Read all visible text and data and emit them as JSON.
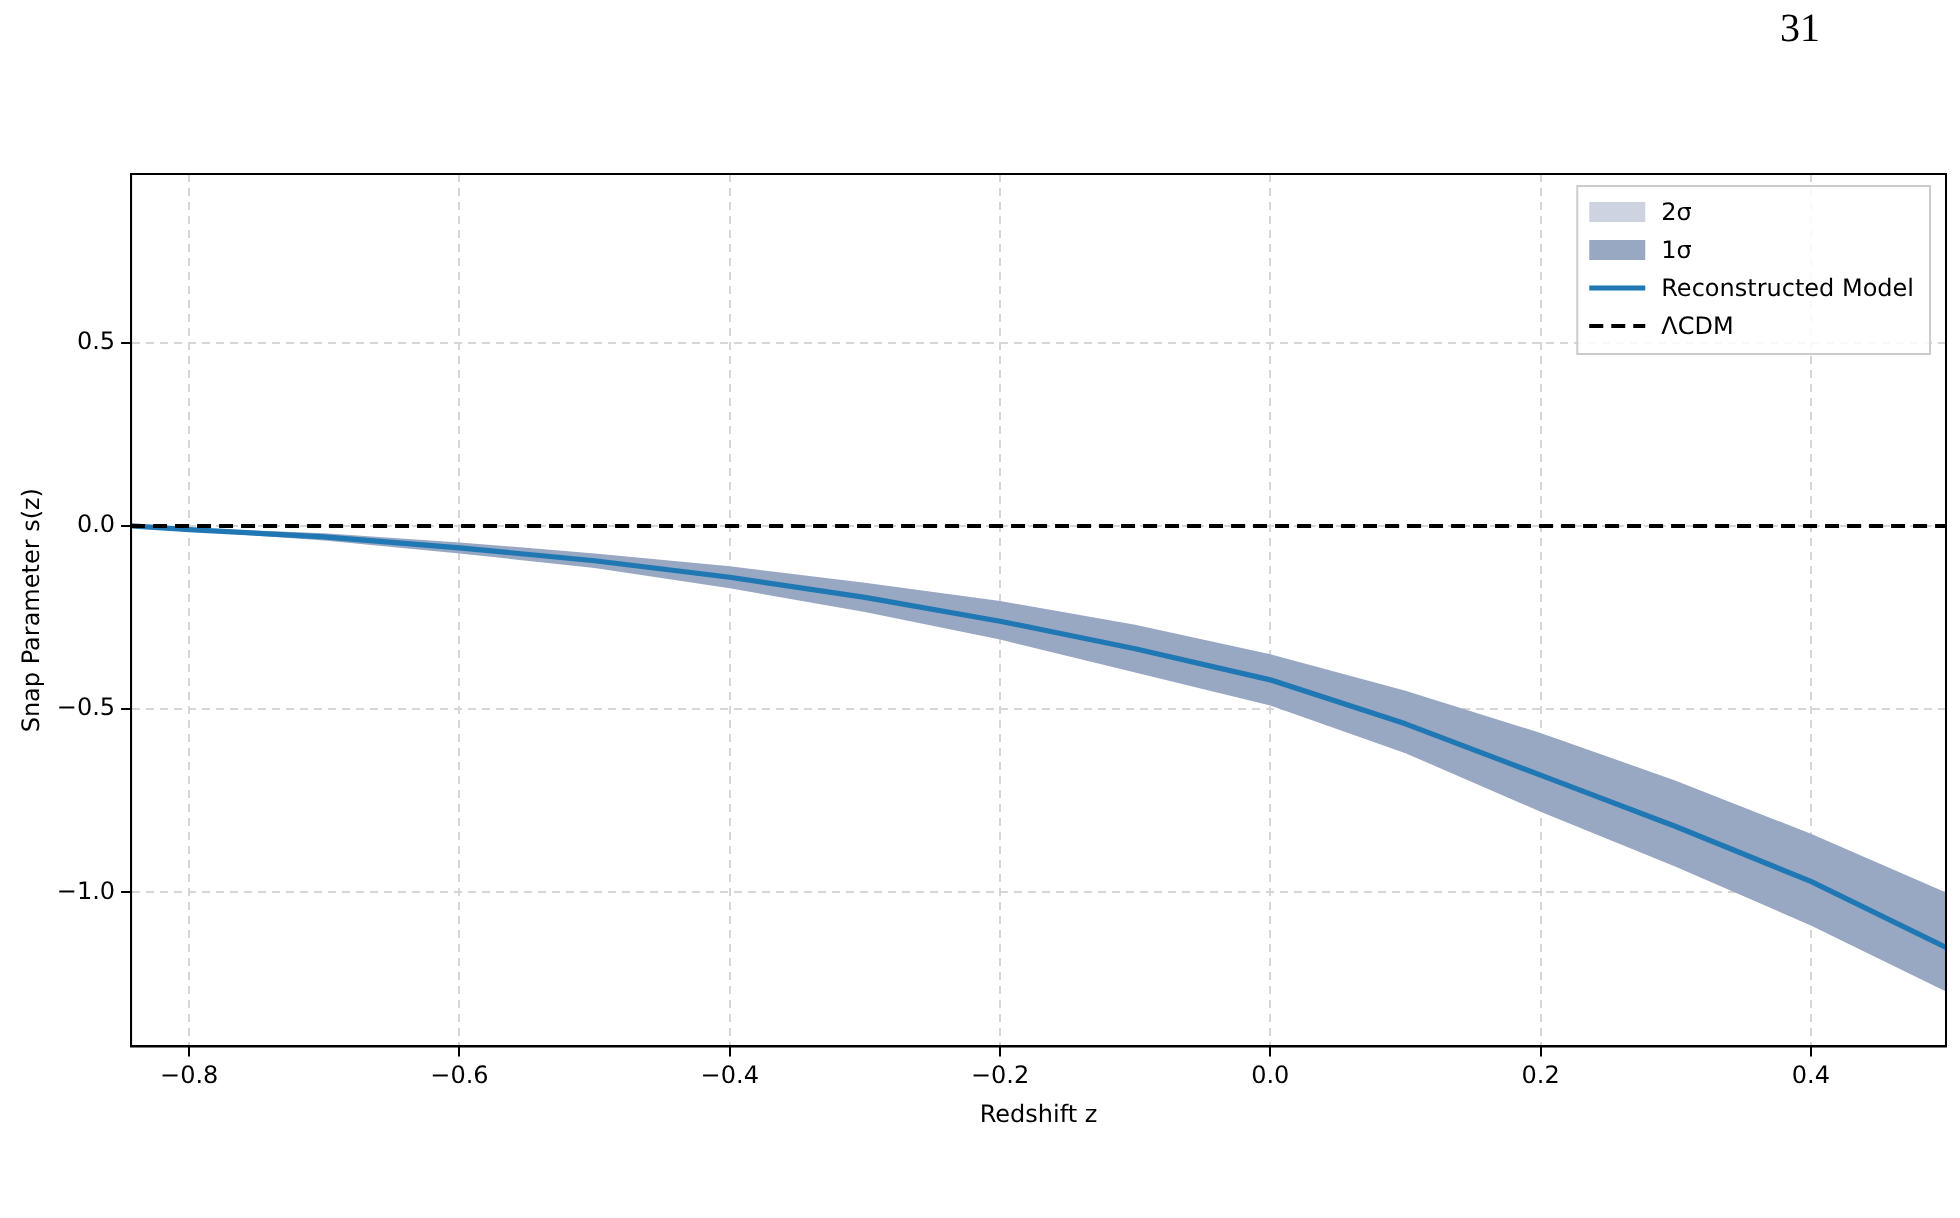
{
  "chart_data": {
    "type": "line",
    "xlabel": "Redshift z",
    "ylabel": "Snap Parameter s(z)",
    "annotations": [
      "31"
    ],
    "x": [
      -0.843,
      -0.8,
      -0.7,
      -0.6,
      -0.5,
      -0.4,
      -0.3,
      -0.2,
      -0.1,
      0,
      0.1,
      0.2,
      0.3,
      0.4,
      0.5
    ],
    "series": [
      {
        "name": "2σ",
        "type": "area",
        "color": "#cdd3e0",
        "values": [
          null,
          null,
          null,
          null,
          null,
          null,
          null,
          null,
          null,
          null,
          null,
          null,
          null,
          null,
          null
        ],
        "lower": [
          null,
          null,
          null,
          null,
          null,
          null,
          null,
          null,
          null,
          null,
          null,
          null,
          null,
          null,
          null
        ],
        "upper": [
          null,
          null,
          null,
          null,
          null,
          null,
          null,
          null,
          null,
          null,
          null,
          null,
          null,
          null,
          null
        ]
      },
      {
        "name": "1σ",
        "type": "area",
        "color": "#98a7c2",
        "values": [
          null,
          null,
          null,
          null,
          null,
          null,
          null,
          null,
          null,
          null,
          null,
          null,
          null,
          null,
          null
        ],
        "lower": [
          0,
          -0.014,
          -0.04,
          -0.075,
          -0.115,
          -0.17,
          -0.235,
          -0.31,
          -0.4,
          -0.49,
          -0.62,
          -0.78,
          -0.93,
          -1.09,
          -1.27
        ],
        "upper": [
          0,
          -0.006,
          -0.02,
          -0.045,
          -0.075,
          -0.11,
          -0.155,
          -0.205,
          -0.27,
          -0.35,
          -0.45,
          -0.565,
          -0.695,
          -0.84,
          -1.0
        ]
      },
      {
        "name": "Reconstructed Model",
        "color": "#1f77b4",
        "values": [
          0,
          -0.01,
          -0.03,
          -0.06,
          -0.095,
          -0.14,
          -0.195,
          -0.26,
          -0.335,
          -0.42,
          -0.54,
          -0.68,
          -0.82,
          -0.97,
          -1.15
        ]
      },
      {
        "name": "ΛCDM",
        "color": "#000000",
        "line_style": "dashed",
        "values": [
          0,
          0,
          0,
          0,
          0,
          0,
          0,
          0,
          0,
          0,
          0,
          0,
          0,
          0,
          0
        ]
      }
    ],
    "xlim": [
      -0.843,
      0.5
    ],
    "ylim": [
      -1.42,
      0.96
    ],
    "xticks": [
      {
        "value": -0.8,
        "label": "−0.8"
      },
      {
        "value": -0.6,
        "label": "−0.6"
      },
      {
        "value": -0.4,
        "label": "−0.4"
      },
      {
        "value": -0.2,
        "label": "−0.2"
      },
      {
        "value": 0,
        "label": "0.0"
      },
      {
        "value": 0.2,
        "label": "0.2"
      },
      {
        "value": 0.4,
        "label": "0.4"
      }
    ],
    "yticks": [
      {
        "value": -1,
        "label": "−1.0"
      },
      {
        "value": -0.5,
        "label": "−0.5"
      },
      {
        "value": 0,
        "label": "0.0"
      },
      {
        "value": 0.5,
        "label": "0.5"
      }
    ],
    "grid": true,
    "legend": "top right"
  }
}
